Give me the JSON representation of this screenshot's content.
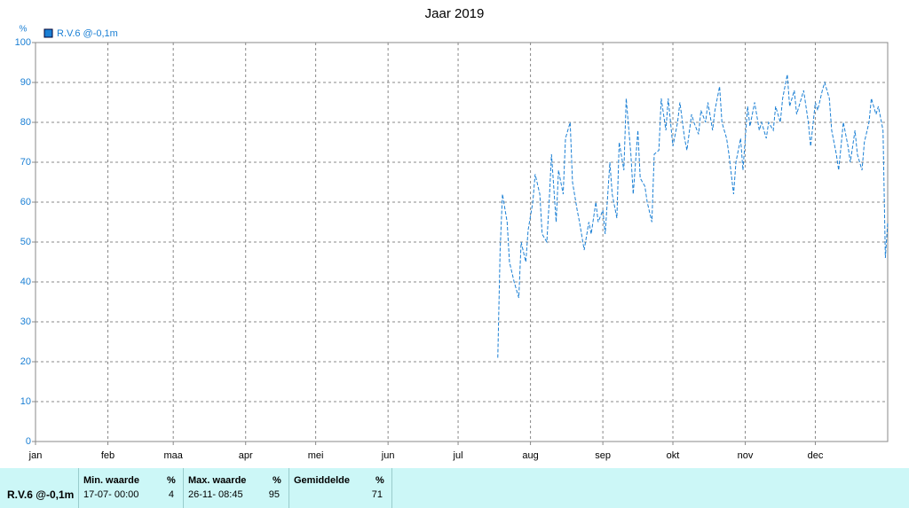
{
  "chart_data": {
    "type": "line",
    "title": "Jaar 2019",
    "y_unit": "%",
    "xlim": [
      0,
      365
    ],
    "xticks": [
      {
        "value": 0,
        "label": "jan"
      },
      {
        "value": 31,
        "label": "feb"
      },
      {
        "value": 59,
        "label": "maa"
      },
      {
        "value": 90,
        "label": "apr"
      },
      {
        "value": 120,
        "label": "mei"
      },
      {
        "value": 151,
        "label": "jun"
      },
      {
        "value": 181,
        "label": "jul"
      },
      {
        "value": 212,
        "label": "aug"
      },
      {
        "value": 243,
        "label": "sep"
      },
      {
        "value": 273,
        "label": "okt"
      },
      {
        "value": 304,
        "label": "nov"
      },
      {
        "value": 334,
        "label": "dec"
      }
    ],
    "ylim": [
      0,
      100
    ],
    "yticks": [
      0,
      10,
      20,
      30,
      40,
      50,
      60,
      70,
      80,
      90,
      100
    ],
    "grid": true,
    "series": [
      {
        "name": "R.V.6 @-0,1m",
        "color": "#1a7fd4",
        "x": [
          198,
          199,
          200,
          202,
          203,
          205,
          207,
          208,
          210,
          211,
          213,
          214,
          216,
          217,
          219,
          220,
          221,
          223,
          224,
          226,
          227,
          229,
          230,
          232,
          233,
          235,
          237,
          238,
          240,
          241,
          243,
          244,
          246,
          247,
          249,
          250,
          252,
          253,
          255,
          256,
          258,
          259,
          261,
          262,
          264,
          265,
          267,
          268,
          270,
          271,
          273,
          275,
          276,
          278,
          279,
          281,
          282,
          284,
          285,
          287,
          288,
          290,
          291,
          293,
          294,
          296,
          297,
          299,
          300,
          302,
          303,
          305,
          306,
          308,
          310,
          311,
          313,
          314,
          316,
          317,
          319,
          320,
          322,
          323,
          325,
          326,
          328,
          329,
          331,
          332,
          334,
          335,
          337,
          338,
          340,
          341,
          343,
          344,
          346,
          348,
          349,
          351,
          352,
          354,
          355,
          357,
          358,
          360,
          361,
          363,
          364,
          365
        ],
        "values": [
          21,
          48,
          62,
          55,
          45,
          40,
          36,
          50,
          45,
          53,
          60,
          67,
          62,
          52,
          50,
          60,
          72,
          55,
          68,
          62,
          76,
          80,
          65,
          58,
          55,
          48,
          55,
          52,
          60,
          55,
          58,
          52,
          70,
          62,
          56,
          75,
          68,
          86,
          72,
          62,
          78,
          66,
          64,
          60,
          55,
          72,
          73,
          86,
          78,
          86,
          74,
          80,
          85,
          76,
          73,
          82,
          80,
          77,
          83,
          80,
          85,
          78,
          83,
          89,
          80,
          76,
          72,
          62,
          70,
          76,
          68,
          84,
          79,
          85,
          78,
          80,
          76,
          80,
          78,
          84,
          80,
          86,
          92,
          84,
          88,
          82,
          86,
          88,
          80,
          74,
          85,
          83,
          88,
          90,
          86,
          78,
          72,
          68,
          80,
          74,
          70,
          78,
          72,
          68,
          75,
          80,
          86,
          82,
          84,
          78,
          46,
          55
        ]
      }
    ]
  },
  "table": {
    "row_label": "R.V.6 @-0,1m",
    "columns": [
      {
        "header": "Min. waarde",
        "unit": "%",
        "time": "17-07- 00:00",
        "value": "4"
      },
      {
        "header": "Max. waarde",
        "unit": "%",
        "time": "26-11- 08:45",
        "value": "95"
      },
      {
        "header": "Gemiddelde",
        "unit": "%",
        "time": "",
        "value": "71"
      }
    ]
  }
}
